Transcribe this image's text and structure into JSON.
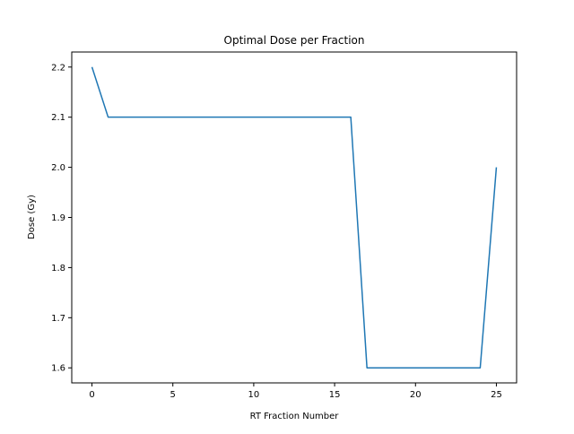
{
  "chart_data": {
    "type": "line",
    "title": "Optimal Dose per Fraction",
    "xlabel": "RT Fraction Number",
    "ylabel": "Dose (Gy)",
    "xlim": [
      -1.25,
      26.25
    ],
    "ylim": [
      1.57,
      2.23
    ],
    "xticks": [
      0,
      5,
      10,
      15,
      20,
      25
    ],
    "yticks": [
      1.6,
      1.7,
      1.8,
      1.9,
      2.0,
      2.1,
      2.2
    ],
    "xtick_labels": [
      "0",
      "5",
      "10",
      "15",
      "20",
      "25"
    ],
    "ytick_labels": [
      "1.6",
      "1.7",
      "1.8",
      "1.9",
      "2.0",
      "2.1",
      "2.2"
    ],
    "grid": false,
    "legend": "none",
    "series": [
      {
        "color": "#1f77b4",
        "x": [
          0,
          1,
          2,
          3,
          4,
          5,
          6,
          7,
          8,
          9,
          10,
          11,
          12,
          13,
          14,
          15,
          16,
          17,
          18,
          19,
          20,
          21,
          22,
          23,
          24,
          25
        ],
        "y": [
          2.2,
          2.1,
          2.1,
          2.1,
          2.1,
          2.1,
          2.1,
          2.1,
          2.1,
          2.1,
          2.1,
          2.1,
          2.1,
          2.1,
          2.1,
          2.1,
          2.1,
          1.6,
          1.6,
          1.6,
          1.6,
          1.6,
          1.6,
          1.6,
          1.6,
          2.0
        ]
      }
    ]
  }
}
